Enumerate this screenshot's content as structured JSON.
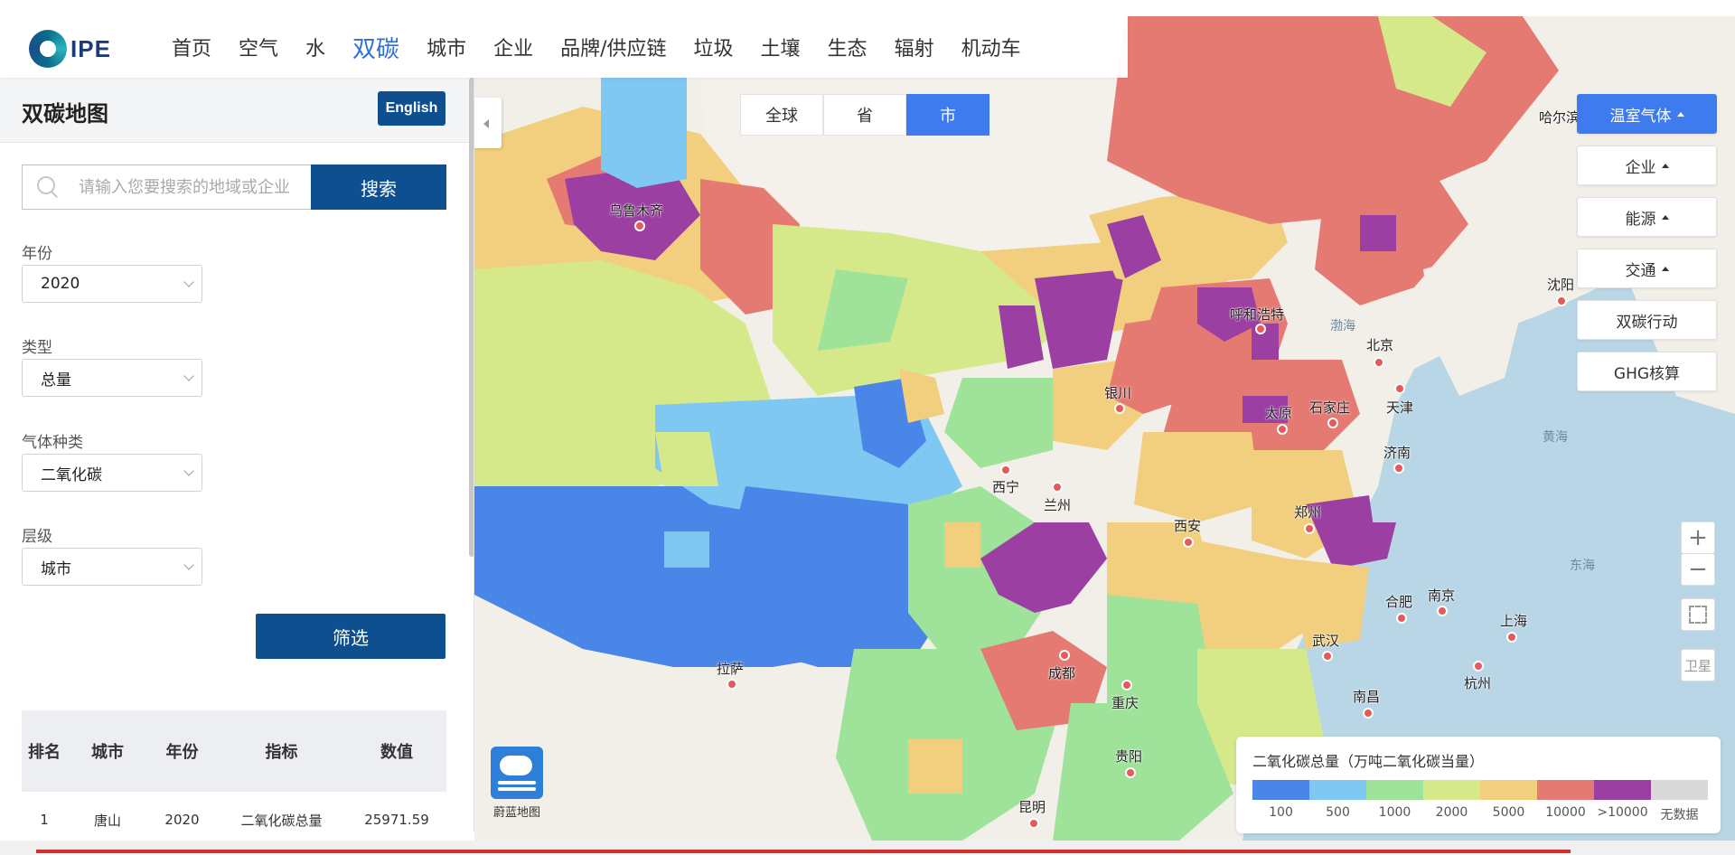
{
  "header": {
    "logo_text": "IPE",
    "nav": [
      "首页",
      "空气",
      "水",
      "双碳",
      "城市",
      "企业",
      "品牌/供应链",
      "垃圾",
      "土壤",
      "生态",
      "辐射",
      "机动车"
    ],
    "active_nav": "双碳"
  },
  "sidebar": {
    "title": "双碳地图",
    "english_label": "English",
    "search": {
      "placeholder": "请输入您要搜索的地域或企业",
      "button_label": "搜索"
    },
    "filters": [
      {
        "label": "年份",
        "value": "2020"
      },
      {
        "label": "类型",
        "value": "总量"
      },
      {
        "label": "气体种类",
        "value": "二氧化碳"
      },
      {
        "label": "层级",
        "value": "城市"
      }
    ],
    "filter_button_label": "筛选",
    "table": {
      "headers": [
        "排名",
        "城市",
        "年份",
        "指标",
        "数值"
      ],
      "rows": [
        [
          "1",
          "唐山",
          "2020",
          "二氧化碳总量",
          "25971.59"
        ]
      ]
    }
  },
  "map": {
    "level_tabs": [
      "全球",
      "省",
      "市"
    ],
    "active_level": "市",
    "right_menu": [
      {
        "label": "温室气体",
        "caret": true,
        "active": true
      },
      {
        "label": "企业",
        "caret": true,
        "active": false
      },
      {
        "label": "能源",
        "caret": true,
        "active": false
      },
      {
        "label": "交通",
        "caret": true,
        "active": false
      },
      {
        "label": "双碳行动",
        "caret": false,
        "active": false
      },
      {
        "label": "GHG核算",
        "caret": false,
        "active": false
      }
    ],
    "controls": {
      "zoom_in": "+",
      "zoom_out": "−",
      "satellite": "卫星"
    },
    "brand_label": "蔚蓝地图",
    "cities": [
      "乌鲁木齐",
      "呼和浩特",
      "北京",
      "沈阳",
      "银川",
      "太原",
      "石家庄",
      "天津",
      "西宁",
      "兰州",
      "济南",
      "郑州",
      "西安",
      "合肥",
      "南京",
      "上海",
      "武汉",
      "拉萨",
      "成都",
      "重庆",
      "杭州",
      "南昌",
      "贵阳",
      "昆明"
    ],
    "seas": [
      "渤海",
      "黄海",
      "东海"
    ],
    "partial_label": "哈尔滨",
    "legend": {
      "title": "二氧化碳总量（万吨二氧化碳当量）",
      "items": [
        {
          "label": "100",
          "color": "#4a86e8"
        },
        {
          "label": "500",
          "color": "#7ec8f2"
        },
        {
          "label": "1000",
          "color": "#9fe39a"
        },
        {
          "label": "2000",
          "color": "#d6e98a"
        },
        {
          "label": "5000",
          "color": "#f2cf7e"
        },
        {
          "label": "10000",
          "color": "#e57a72"
        },
        {
          "label": ">10000",
          "color": "#9c3fa3"
        },
        {
          "label": "无数据",
          "color": "#d9d9d9"
        }
      ]
    }
  }
}
